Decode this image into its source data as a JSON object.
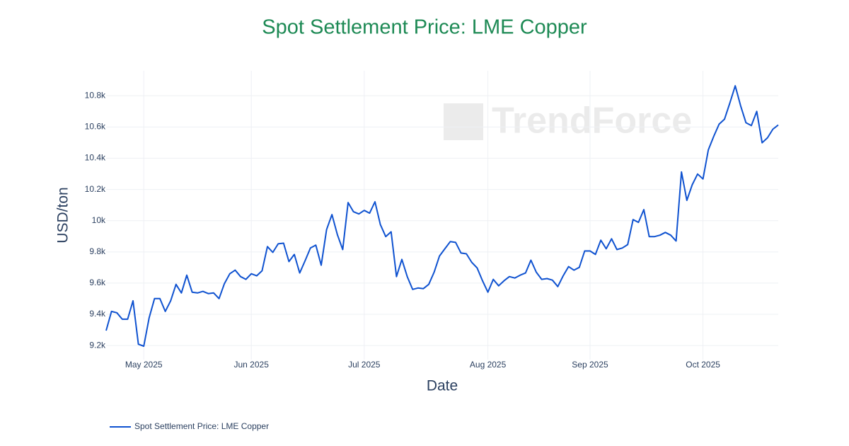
{
  "chart_data": {
    "type": "line",
    "title": "Spot Settlement Price: LME Copper",
    "watermark": "TrendForce",
    "x_label": "Date",
    "y_label": "USD/ton",
    "categories": [
      null,
      null,
      null,
      null,
      null,
      null,
      null,
      "May 2025",
      null,
      null,
      null,
      null,
      null,
      null,
      null,
      null,
      null,
      null,
      null,
      null,
      null,
      null,
      null,
      null,
      null,
      null,
      null,
      "Jun 2025",
      null,
      null,
      null,
      null,
      null,
      null,
      null,
      null,
      null,
      null,
      null,
      null,
      null,
      null,
      null,
      null,
      null,
      null,
      null,
      null,
      "Jul 2025",
      null,
      null,
      null,
      null,
      null,
      null,
      null,
      null,
      null,
      null,
      null,
      null,
      null,
      null,
      null,
      null,
      null,
      null,
      null,
      null,
      null,
      null,
      "Aug 2025",
      null,
      null,
      null,
      null,
      null,
      null,
      null,
      null,
      null,
      null,
      null,
      null,
      null,
      null,
      null,
      null,
      null,
      null,
      "Sep 2025",
      null,
      null,
      null,
      null,
      null,
      null,
      null,
      null,
      null,
      null,
      null,
      null,
      null,
      null,
      null,
      null,
      null,
      null,
      null,
      null,
      "Oct 2025",
      null,
      null,
      null,
      null,
      null,
      null,
      null,
      null,
      null,
      null,
      null,
      null,
      null,
      null
    ],
    "series": [
      {
        "name": "Spot Settlement Price: LME Copper",
        "color": "#0f52d0",
        "values": [
          9296,
          9419,
          9410,
          9369,
          9369,
          9487,
          9209,
          9196,
          9378,
          9501,
          9501,
          9419,
          9487,
          9592,
          9537,
          9651,
          9542,
          9537,
          9547,
          9533,
          9537,
          9501,
          9597,
          9660,
          9683,
          9642,
          9624,
          9660,
          9647,
          9679,
          9834,
          9797,
          9852,
          9856,
          9738,
          9784,
          9665,
          9743,
          9825,
          9843,
          9715,
          9943,
          10039,
          9911,
          9815,
          10116,
          10057,
          10043,
          10066,
          10048,
          10121,
          9975,
          9898,
          9929,
          9642,
          9752,
          9642,
          9560,
          9569,
          9565,
          9592,
          9670,
          9774,
          9820,
          9866,
          9861,
          9793,
          9788,
          9733,
          9697,
          9615,
          9542,
          9624,
          9583,
          9615,
          9642,
          9633,
          9651,
          9665,
          9747,
          9670,
          9624,
          9629,
          9619,
          9578,
          9647,
          9706,
          9683,
          9701,
          9806,
          9806,
          9784,
          9875,
          9820,
          9884,
          9815,
          9825,
          9847,
          10007,
          9989,
          10071,
          9898,
          9898,
          9907,
          9925,
          9907,
          9870,
          10312,
          10130,
          10230,
          10299,
          10267,
          10454,
          10540,
          10618,
          10650,
          10754,
          10864,
          10736,
          10627,
          10609,
          10700,
          10499,
          10531,
          10586,
          10613
        ]
      }
    ],
    "ylim": [
      9110,
      10960
    ],
    "yticks": [
      {
        "value": 9200,
        "label": "9.2k"
      },
      {
        "value": 9400,
        "label": "9.4k"
      },
      {
        "value": 9600,
        "label": "9.6k"
      },
      {
        "value": 9800,
        "label": "9.8k"
      },
      {
        "value": 10000,
        "label": "10k"
      },
      {
        "value": 10200,
        "label": "10.2k"
      },
      {
        "value": 10400,
        "label": "10.4k"
      },
      {
        "value": 10600,
        "label": "10.6k"
      },
      {
        "value": 10800,
        "label": "10.8k"
      }
    ],
    "grid": true,
    "legend": "bottom-left"
  }
}
